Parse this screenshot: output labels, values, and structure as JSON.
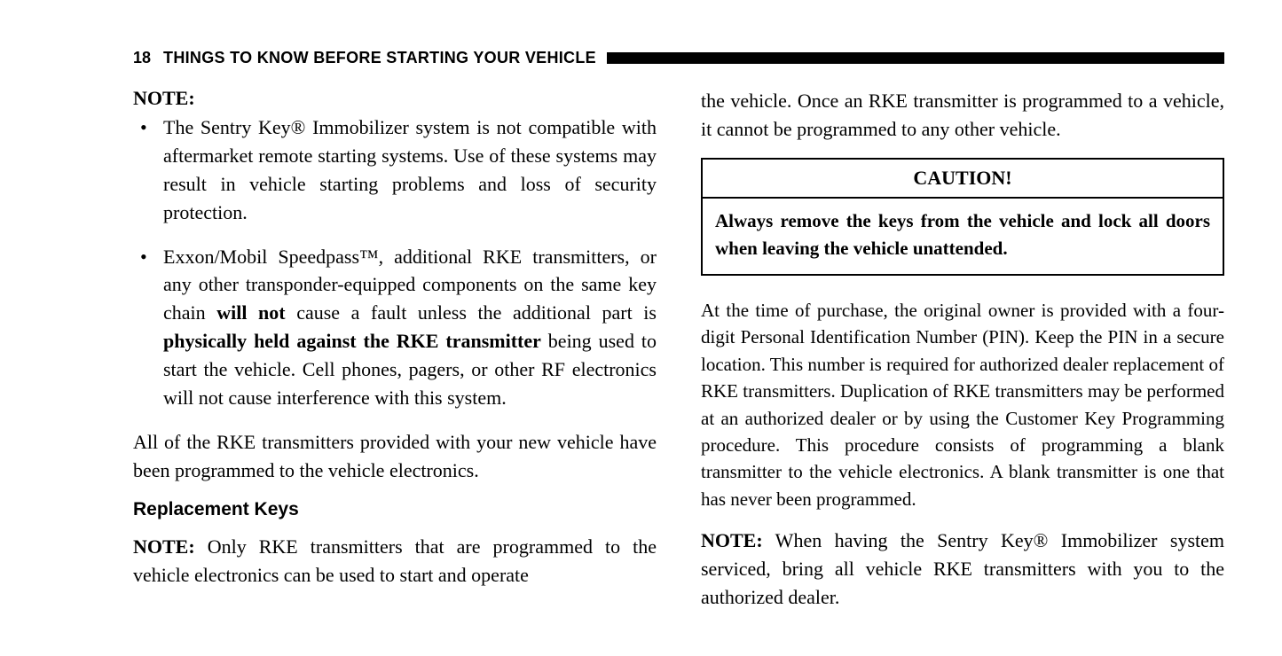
{
  "header": {
    "page_number": "18",
    "section_title": "THINGS TO KNOW BEFORE STARTING YOUR VEHICLE"
  },
  "left_column": {
    "note_label": "NOTE:",
    "bullet1": "The Sentry Key® Immobilizer system is not compatible with aftermarket remote starting systems. Use of these systems may result in vehicle starting problems and loss of security protection.",
    "bullet2_part1": "Exxon/Mobil Speedpass™, additional RKE transmitters, or any other transponder-equipped components on the same key chain ",
    "bullet2_bold1": "will not",
    "bullet2_part2": " cause a fault unless the additional part is ",
    "bullet2_bold2": "physically held against the RKE transmitter",
    "bullet2_part3": " being used to start the vehicle. Cell phones, pagers, or other RF electronics will not cause interference with this system.",
    "para1": "All of the RKE transmitters provided with your new vehicle have been programmed to the vehicle electronics.",
    "subheading": "Replacement Keys",
    "note2_label": "NOTE:",
    "note2_text": " Only RKE transmitters that are programmed to the vehicle electronics can be used to start and operate"
  },
  "right_column": {
    "para1": "the vehicle. Once an RKE transmitter is programmed to a vehicle, it cannot be programmed to any other vehicle.",
    "caution_title": "CAUTION!",
    "caution_body": "Always remove the keys from the vehicle and lock all doors when leaving the vehicle unattended.",
    "para2": "At the time of purchase, the original owner is provided with a four-digit Personal Identification Number (PIN). Keep the PIN in a secure location. This number is required for authorized dealer replacement of RKE transmitters. Duplication of RKE transmitters may be performed at an authorized dealer or by using the Customer Key Programming procedure. This procedure consists of programming a blank transmitter to the vehicle electronics. A blank transmitter is one that has never been programmed.",
    "note_label": "NOTE:",
    "note_text": " When having the Sentry Key® Immobilizer system serviced, bring all vehicle RKE transmitters with you to the authorized dealer."
  }
}
